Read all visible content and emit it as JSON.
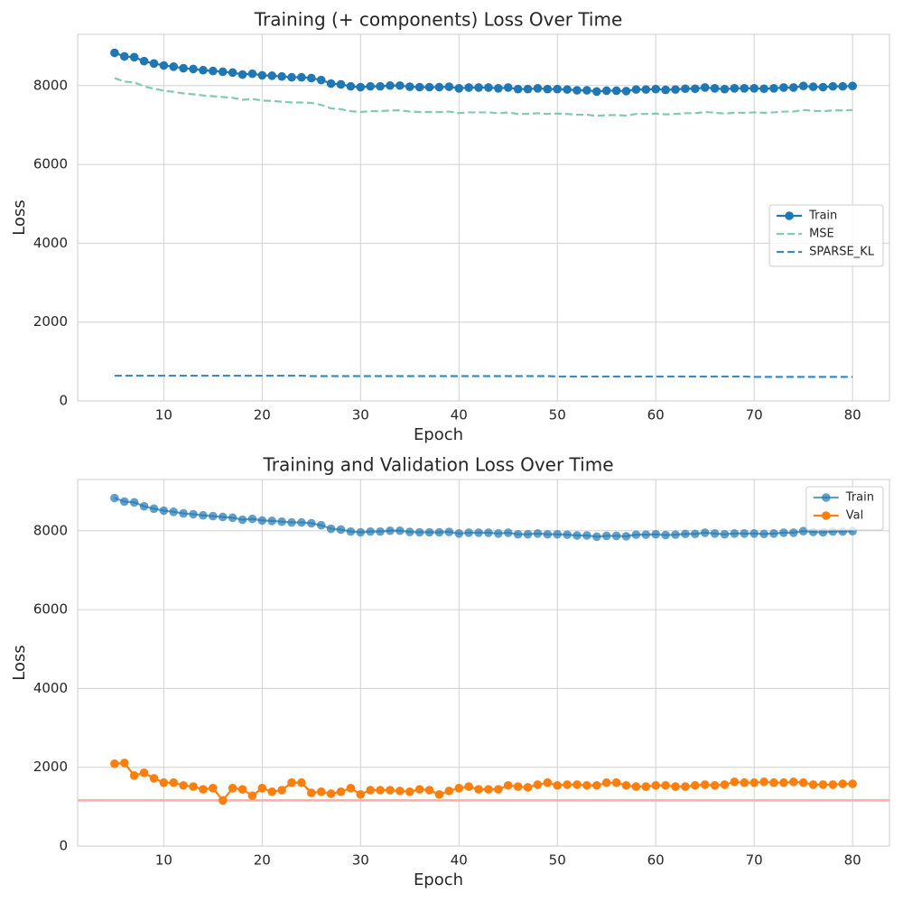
{
  "chart_data": [
    {
      "type": "line",
      "title": "Training (+ components) Loss Over Time",
      "x_label": "Epoch",
      "y_label": "Loss",
      "x": [
        5,
        6,
        7,
        8,
        9,
        10,
        11,
        12,
        13,
        14,
        15,
        16,
        17,
        18,
        19,
        20,
        21,
        22,
        23,
        24,
        25,
        26,
        27,
        28,
        29,
        30,
        31,
        32,
        33,
        34,
        35,
        36,
        37,
        38,
        39,
        40,
        41,
        42,
        43,
        44,
        45,
        46,
        47,
        48,
        49,
        50,
        51,
        52,
        53,
        54,
        55,
        56,
        57,
        58,
        59,
        60,
        61,
        62,
        63,
        64,
        65,
        66,
        67,
        68,
        69,
        70,
        71,
        72,
        73,
        74,
        75,
        76,
        77,
        78,
        79,
        80
      ],
      "series": [
        {
          "name": "Train",
          "color": "#1f77b4",
          "marker": true,
          "dash": false,
          "opacity": 1,
          "values": [
            8830,
            8740,
            8720,
            8620,
            8560,
            8510,
            8480,
            8440,
            8420,
            8390,
            8370,
            8350,
            8330,
            8280,
            8300,
            8260,
            8250,
            8230,
            8210,
            8210,
            8190,
            8140,
            8050,
            8030,
            7980,
            7960,
            7980,
            7980,
            8000,
            8000,
            7970,
            7960,
            7960,
            7960,
            7970,
            7930,
            7950,
            7950,
            7950,
            7930,
            7950,
            7910,
            7910,
            7930,
            7910,
            7910,
            7900,
            7880,
            7880,
            7850,
            7870,
            7870,
            7860,
            7900,
            7900,
            7910,
            7890,
            7900,
            7920,
            7920,
            7950,
            7930,
            7910,
            7930,
            7930,
            7930,
            7920,
            7930,
            7950,
            7950,
            7990,
            7970,
            7960,
            7980,
            7980,
            7990
          ]
        },
        {
          "name": "MSE",
          "color": "#80c9b2",
          "marker": false,
          "dash": true,
          "opacity": 1,
          "values": [
            8190,
            8100,
            8080,
            7980,
            7920,
            7870,
            7840,
            7800,
            7780,
            7750,
            7730,
            7710,
            7690,
            7640,
            7660,
            7620,
            7610,
            7590,
            7570,
            7570,
            7560,
            7510,
            7420,
            7400,
            7350,
            7330,
            7350,
            7350,
            7370,
            7370,
            7340,
            7330,
            7330,
            7330,
            7340,
            7300,
            7320,
            7320,
            7320,
            7300,
            7320,
            7280,
            7280,
            7300,
            7280,
            7290,
            7280,
            7260,
            7260,
            7230,
            7250,
            7250,
            7240,
            7280,
            7280,
            7290,
            7270,
            7280,
            7300,
            7300,
            7330,
            7310,
            7290,
            7310,
            7310,
            7320,
            7310,
            7320,
            7340,
            7340,
            7380,
            7360,
            7350,
            7370,
            7370,
            7380
          ]
        },
        {
          "name": "SPARSE_KL",
          "color": "#3b8bc2",
          "marker": false,
          "dash": true,
          "opacity": 1,
          "values": [
            640,
            640,
            640,
            640,
            640,
            640,
            640,
            640,
            640,
            640,
            640,
            640,
            640,
            640,
            640,
            640,
            640,
            640,
            640,
            640,
            630,
            630,
            630,
            630,
            630,
            630,
            630,
            630,
            630,
            630,
            630,
            630,
            630,
            630,
            630,
            630,
            630,
            630,
            630,
            630,
            630,
            630,
            630,
            630,
            630,
            620,
            620,
            620,
            620,
            620,
            620,
            620,
            620,
            620,
            620,
            620,
            620,
            620,
            620,
            620,
            620,
            620,
            620,
            620,
            620,
            610,
            610,
            610,
            610,
            610,
            610,
            610,
            610,
            610,
            610,
            610
          ]
        }
      ],
      "xlim": [
        1.25,
        83.75
      ],
      "ylim": [
        0,
        9300
      ],
      "xticks": [
        10,
        20,
        30,
        40,
        50,
        60,
        70,
        80
      ],
      "yticks": [
        0,
        2000,
        4000,
        6000,
        8000
      ],
      "grid": true,
      "legend": "center right"
    },
    {
      "type": "line",
      "title": "Training and Validation Loss Over Time",
      "x_label": "Epoch",
      "y_label": "Loss",
      "x": [
        5,
        6,
        7,
        8,
        9,
        10,
        11,
        12,
        13,
        14,
        15,
        16,
        17,
        18,
        19,
        20,
        21,
        22,
        23,
        24,
        25,
        26,
        27,
        28,
        29,
        30,
        31,
        32,
        33,
        34,
        35,
        36,
        37,
        38,
        39,
        40,
        41,
        42,
        43,
        44,
        45,
        46,
        47,
        48,
        49,
        50,
        51,
        52,
        53,
        54,
        55,
        56,
        57,
        58,
        59,
        60,
        61,
        62,
        63,
        64,
        65,
        66,
        67,
        68,
        69,
        70,
        71,
        72,
        73,
        74,
        75,
        76,
        77,
        78,
        79,
        80
      ],
      "series": [
        {
          "name": "Train",
          "color": "#1f77b4",
          "marker": true,
          "dash": false,
          "opacity": 0.7,
          "values": [
            8830,
            8740,
            8720,
            8620,
            8560,
            8510,
            8480,
            8440,
            8420,
            8390,
            8370,
            8350,
            8330,
            8280,
            8300,
            8260,
            8250,
            8230,
            8210,
            8210,
            8190,
            8140,
            8050,
            8030,
            7980,
            7960,
            7980,
            7980,
            8000,
            8000,
            7970,
            7960,
            7960,
            7960,
            7970,
            7930,
            7950,
            7950,
            7950,
            7930,
            7950,
            7910,
            7910,
            7930,
            7910,
            7910,
            7900,
            7880,
            7880,
            7850,
            7870,
            7870,
            7860,
            7900,
            7900,
            7910,
            7890,
            7900,
            7920,
            7920,
            7950,
            7930,
            7910,
            7930,
            7930,
            7930,
            7920,
            7930,
            7950,
            7950,
            7990,
            7970,
            7960,
            7980,
            7980,
            7990
          ]
        },
        {
          "name": "Val",
          "color": "#ff7f0e",
          "marker": true,
          "dash": false,
          "opacity": 1,
          "values": [
            2090,
            2110,
            1790,
            1860,
            1720,
            1610,
            1610,
            1540,
            1510,
            1440,
            1470,
            1160,
            1470,
            1440,
            1280,
            1470,
            1380,
            1420,
            1610,
            1610,
            1350,
            1380,
            1330,
            1380,
            1470,
            1310,
            1420,
            1420,
            1420,
            1400,
            1380,
            1440,
            1420,
            1310,
            1400,
            1470,
            1510,
            1440,
            1440,
            1440,
            1540,
            1510,
            1490,
            1560,
            1610,
            1540,
            1560,
            1560,
            1540,
            1540,
            1610,
            1610,
            1540,
            1510,
            1510,
            1540,
            1540,
            1510,
            1510,
            1540,
            1560,
            1540,
            1560,
            1630,
            1610,
            1610,
            1630,
            1610,
            1610,
            1630,
            1610,
            1560,
            1560,
            1560,
            1580,
            1580
          ]
        }
      ],
      "hline": {
        "value": 1160,
        "color": "#ffaaaa"
      },
      "xlim": [
        1.25,
        83.75
      ],
      "ylim": [
        0,
        9300
      ],
      "xticks": [
        10,
        20,
        30,
        40,
        50,
        60,
        70,
        80
      ],
      "yticks": [
        0,
        2000,
        4000,
        6000,
        8000
      ],
      "grid": true,
      "legend": "upper right"
    }
  ]
}
